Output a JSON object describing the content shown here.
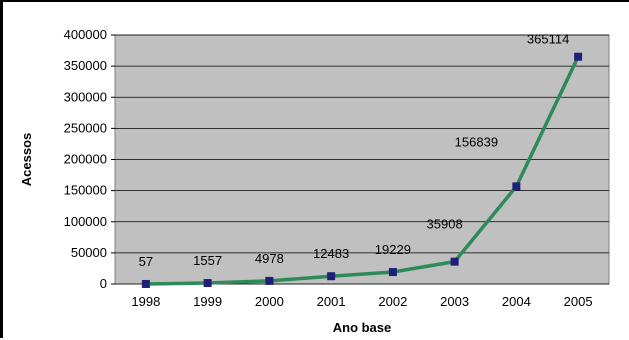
{
  "chart_data": {
    "type": "line",
    "title": "",
    "xlabel": "Ano base",
    "ylabel": "Acessos",
    "categories": [
      "1998",
      "1999",
      "2000",
      "2001",
      "2002",
      "2003",
      "2004",
      "2005"
    ],
    "series": [
      {
        "values": [
          57,
          1557,
          4978,
          12483,
          19229,
          35908,
          156839,
          365114
        ],
        "color": "#2e8b57",
        "marker_color": "#1f1f7a"
      }
    ],
    "data_labels": [
      "57",
      "1557",
      "4978",
      "12483",
      "19229",
      "35908",
      "156839",
      "365114"
    ],
    "ylim": [
      0,
      400000
    ],
    "yticks": [
      "0",
      "50000",
      "100000",
      "150000",
      "200000",
      "250000",
      "300000",
      "350000",
      "400000"
    ],
    "grid": true,
    "legend": "none",
    "plot_background": "#c0c0c0"
  }
}
